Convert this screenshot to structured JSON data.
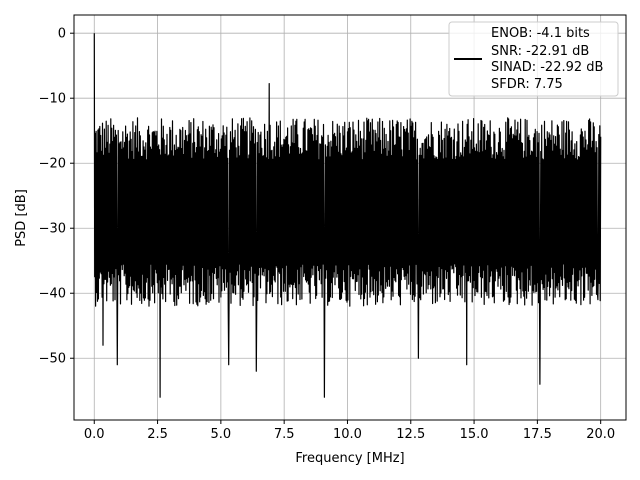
{
  "chart_data": {
    "type": "line",
    "title": "",
    "xlabel": "Frequency [MHz]",
    "ylabel": "PSD [dB]",
    "xlim": [
      -0.8,
      21.0
    ],
    "ylim": [
      -59.5,
      2.8
    ],
    "x_ticks": [
      0.0,
      2.5,
      5.0,
      7.5,
      10.0,
      12.5,
      15.0,
      17.5,
      20.0
    ],
    "x_tick_labels": [
      "0.0",
      "2.5",
      "5.0",
      "7.5",
      "10.0",
      "12.5",
      "15.0",
      "17.5",
      "20.0"
    ],
    "y_ticks": [
      0,
      -10,
      -20,
      -30,
      -40,
      -50
    ],
    "y_tick_labels": [
      "0",
      "−10",
      "−20",
      "−30",
      "−40",
      "−50"
    ],
    "grid": true,
    "legend_position": "top-right",
    "series": [
      {
        "color": "#000000",
        "x_start": 0.0,
        "x_end": 20.0,
        "peak": {
          "x": 0.0,
          "y": 0.0
        },
        "noise_floor_range": [
          -42,
          -13
        ],
        "max_spur": {
          "x": 6.9,
          "y": -7.75
        },
        "notable_dips": [
          {
            "x": 0.35,
            "y": -48
          },
          {
            "x": 0.9,
            "y": -51
          },
          {
            "x": 2.6,
            "y": -56
          },
          {
            "x": 5.3,
            "y": -51
          },
          {
            "x": 6.4,
            "y": -52
          },
          {
            "x": 9.1,
            "y": -56
          },
          {
            "x": 12.8,
            "y": -50
          },
          {
            "x": 14.7,
            "y": -51
          },
          {
            "x": 17.6,
            "y": -54
          },
          {
            "x": 19.9,
            "y": -41
          }
        ]
      }
    ]
  },
  "legend": {
    "lines": [
      "ENOB: -4.1 bits",
      "SNR: -22.91 dB",
      "SINAD: -22.92 dB",
      "SFDR: 7.75"
    ]
  }
}
